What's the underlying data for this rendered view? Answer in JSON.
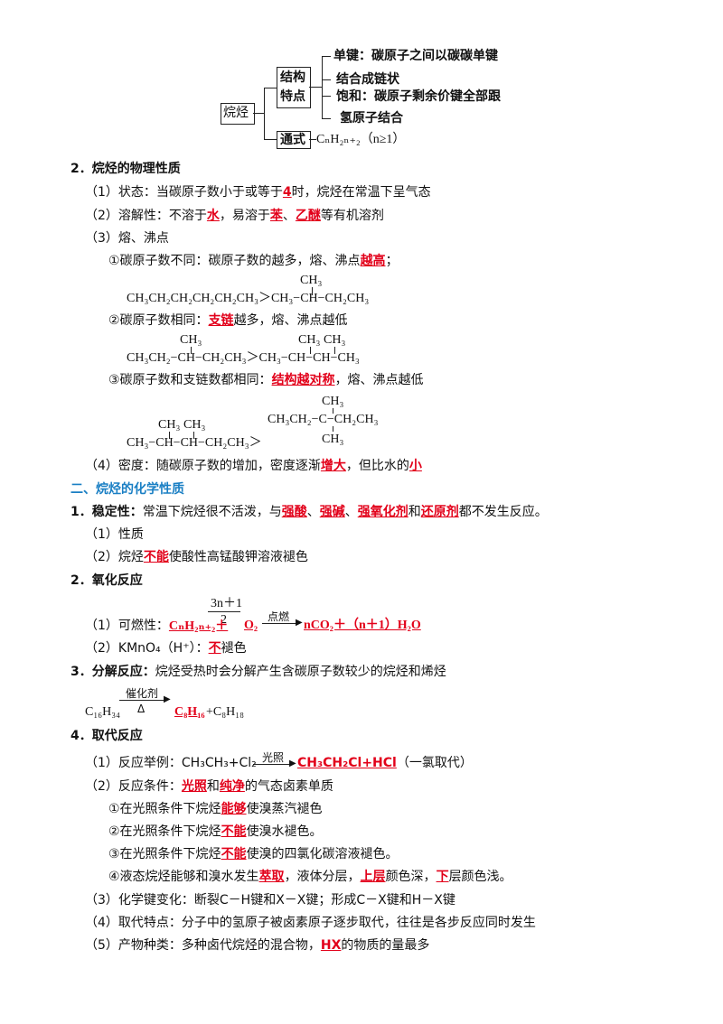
{
  "diagram": {
    "root": "烷烃",
    "branch1": [
      "结构",
      "特点"
    ],
    "leaf1": "单键：碳原子之间以碳碳单键",
    "leaf2": "结合成链状",
    "leaf3": "饱和：碳原子剩余价键全部跟",
    "leaf4": "氢原子结合",
    "branch2": "通式",
    "formula": "CₙH₂ₙ₊₂（n≥1）"
  },
  "s2": {
    "title": "2．烷烃的物理性质",
    "l1a": "（1）状态：当碳原子数小于或等于",
    "l1b": "4",
    "l1c": "时，烷烃在常温下呈气态",
    "l2a": "（2）溶解性：不溶于",
    "l2b": "水",
    "l2c": "，易溶于",
    "l2d": "苯",
    "l2e": "、",
    "l2f": "乙醚",
    "l2g": "等有机溶剂",
    "l3": "（3）熔、沸点",
    "r1a": "①碳原子数不同：碳原子数的越多，熔、沸点",
    "r1b": "越高",
    "r1c": "；",
    "chem1": "CH₃CH₂CH₂CH₂CH₂CH₃＞CH₃−CH−CH₂CH₃",
    "r2a": "②碳原子数相同：",
    "r2b": "支链",
    "r2c": "越多，熔、沸点越低",
    "chem2": "CH₃CH₂−CH−CH₂CH₃＞CH₃−CH−CH−CH₃",
    "r3a": "③碳原子数和支链数都相同：",
    "r3b": "结构越对称",
    "r3c": "，熔、沸点越低",
    "chem3": "CH₃−CH−CH−CH₂CH₃＞",
    "chem3b": "CH₃CH₂−C−CH₂CH₃",
    "ch3": "CH₃",
    "l4a": "（4）密度：随碳原子数的增加，密度逐渐",
    "l4b": "增大",
    "l4c": "，但比水的",
    "l4d": "小"
  },
  "s3": {
    "heading": "二、烷烃的化学性质",
    "t1a": "1．稳定性：",
    "t1b": "常温下烷烃很不活泼，与",
    "t1c": "强酸",
    "t1d": "、",
    "t1e": "强碱",
    "t1f": "、",
    "t1g": "强氧化剂",
    "t1h": "和",
    "t1i": "还原剂",
    "t1j": "都不发生反应。",
    "p1": "（1）性质",
    "p2a": "（2）烷烃",
    "p2b": "不能",
    "p2c": "使酸性高锰酸钾溶液褪色",
    "t2": "2．氧化反应",
    "frac_top": "3n＋1",
    "frac_bot": "2",
    "arrow1": "点燃",
    "o1a": "（1）可燃性：",
    "o1b": "CₙH₂ₙ₊₂＋",
    "o1c": "O₂",
    "o1d": "nCO₂＋（n＋1）H₂O",
    "o2a": "（2）KMnO₄（H⁺）：",
    "o2b": "不",
    "o2c": "褪色",
    "t3a": "3．分解反应：",
    "t3b": "烷烃受热时会分解产生含碳原子数较少的烷烃和烯烃",
    "catalyst": "催化剂",
    "delta": "Δ",
    "d1": "C₁₆H₃₄",
    "d2": "C₈H₁₆",
    "d3": "+C₈H₁₈",
    "t4": "4．取代反应",
    "q1a": "（1）反应举例：CH₃CH₃+Cl₂",
    "light": "光照",
    "q1b": "CH₃CH₂Cl+HCl",
    "q1c": "（一氯取代）",
    "q2a": "（2）反应条件：",
    "q2b": "光照",
    "q2c": "和",
    "q2d": "纯净",
    "q2e": "的气态卤素单质",
    "c1a": "①在光照条件下烷烃",
    "c1b": "能够",
    "c1c": "使溴蒸汽褪色",
    "c2a": "②在光照条件下烷烃",
    "c2b": "不能",
    "c2c": "使溴水褪色。",
    "c3a": "③在光照条件下烷烃",
    "c3b": "不能",
    "c3c": "使溴的四氯化碳溶液褪色。",
    "c4a": "④液态烷烃能够和溴水发生",
    "c4b": "萃取",
    "c4c": "，液体分层，",
    "c4d": "上层",
    "c4e": "颜色深，",
    "c4f": "下",
    "c4g": "层颜色浅。",
    "q3": "（3）化学键变化：断裂C－H键和X－X键；形成C－X键和H－X键",
    "q4": "（4）取代特点：分子中的氢原子被卤素原子逐步取代，往往是各步反应同时发生",
    "q5a": "（5）产物种类：多种卤代烷烃的混合物，",
    "q5b": "HX",
    "q5c": "的物质的量最多"
  }
}
